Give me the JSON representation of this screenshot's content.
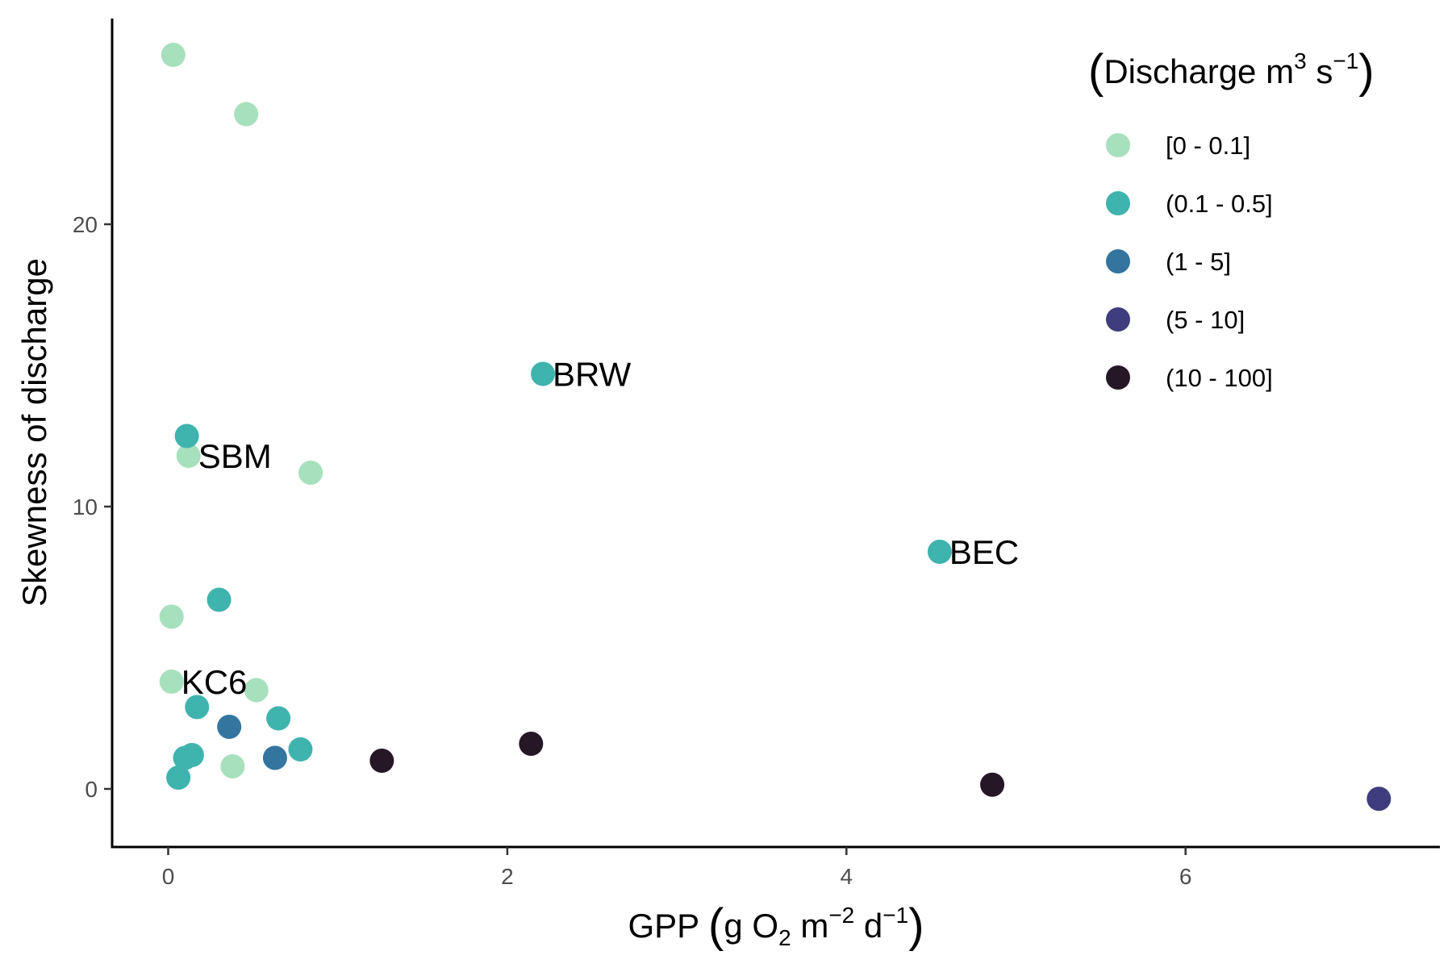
{
  "chart_data": {
    "type": "scatter",
    "xlabel": "GPP (g O2 m-2 d-1)",
    "ylabel": "Skewness of discharge",
    "xlim": [
      -0.33,
      7.5
    ],
    "ylim": [
      -2.1,
      27.2
    ],
    "x_ticks": [
      "0",
      "2",
      "4",
      "6"
    ],
    "y_ticks": [
      "0",
      "10",
      "20"
    ],
    "grid": false,
    "legend": {
      "title": "Discharge m3 s-1",
      "placement": "top-right",
      "entries": [
        {
          "label": "[0 - 0.1]",
          "color": "#a7e0bd"
        },
        {
          "label": "(0.1 - 0.5]",
          "color": "#3fb3ae"
        },
        {
          "label": "(1 - 5]",
          "color": "#33759f"
        },
        {
          "label": "(5 - 10]",
          "color": "#3f3d7d"
        },
        {
          "label": "(10 - 100]",
          "color": "#261726"
        }
      ]
    },
    "points": [
      {
        "x": 0.03,
        "y": 26.0,
        "group": 0,
        "label": ""
      },
      {
        "x": 0.46,
        "y": 23.9,
        "group": 0,
        "label": ""
      },
      {
        "x": 0.12,
        "y": 11.8,
        "group": 0,
        "label": "SBM"
      },
      {
        "x": 0.84,
        "y": 11.2,
        "group": 0,
        "label": ""
      },
      {
        "x": 0.02,
        "y": 6.1,
        "group": 0,
        "label": ""
      },
      {
        "x": 0.02,
        "y": 3.8,
        "group": 0,
        "label": "KC6"
      },
      {
        "x": 0.52,
        "y": 3.5,
        "group": 0,
        "label": ""
      },
      {
        "x": 0.38,
        "y": 0.8,
        "group": 0,
        "label": ""
      },
      {
        "x": 0.11,
        "y": 12.5,
        "group": 1,
        "label": ""
      },
      {
        "x": 0.3,
        "y": 6.7,
        "group": 1,
        "label": ""
      },
      {
        "x": 0.17,
        "y": 2.9,
        "group": 1,
        "label": ""
      },
      {
        "x": 0.65,
        "y": 2.5,
        "group": 1,
        "label": ""
      },
      {
        "x": 0.78,
        "y": 1.4,
        "group": 1,
        "label": ""
      },
      {
        "x": 0.1,
        "y": 1.1,
        "group": 1,
        "label": ""
      },
      {
        "x": 0.14,
        "y": 1.2,
        "group": 1,
        "label": ""
      },
      {
        "x": 0.06,
        "y": 0.4,
        "group": 1,
        "label": ""
      },
      {
        "x": 2.21,
        "y": 14.7,
        "group": 1,
        "label": "BRW"
      },
      {
        "x": 4.55,
        "y": 8.4,
        "group": 1,
        "label": "BEC"
      },
      {
        "x": 0.36,
        "y": 2.2,
        "group": 2,
        "label": ""
      },
      {
        "x": 0.63,
        "y": 1.1,
        "group": 2,
        "label": ""
      },
      {
        "x": 7.14,
        "y": -0.35,
        "group": 3,
        "label": ""
      },
      {
        "x": 1.26,
        "y": 1.0,
        "group": 4,
        "label": ""
      },
      {
        "x": 2.14,
        "y": 1.6,
        "group": 4,
        "label": ""
      },
      {
        "x": 4.86,
        "y": 0.15,
        "group": 4,
        "label": ""
      }
    ]
  }
}
